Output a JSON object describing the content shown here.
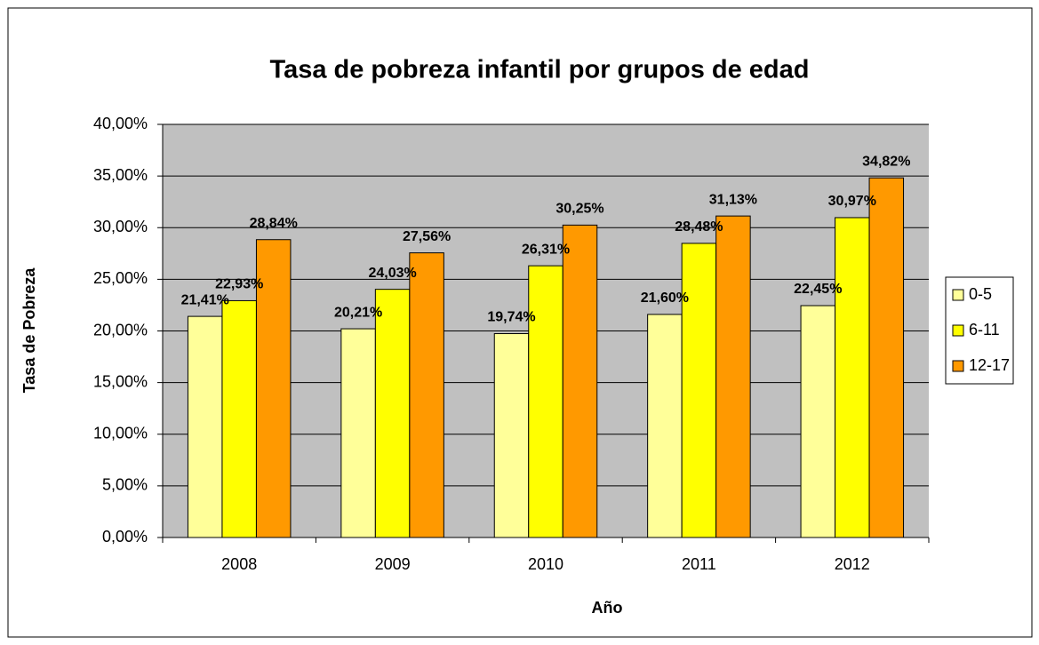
{
  "chart_data": {
    "type": "bar",
    "title": "Tasa de pobreza infantil por grupos de edad",
    "x_label": "Año",
    "y_label": "Tasa de Pobreza",
    "categories": [
      "2008",
      "2009",
      "2010",
      "2011",
      "2012"
    ],
    "series": [
      {
        "name": "0-5",
        "color": "#ffff99",
        "values": [
          21.41,
          20.21,
          19.74,
          21.6,
          22.45
        ],
        "value_labels": [
          "21,41%",
          "20,21%",
          "19,74%",
          "21,60%",
          "22,45%"
        ]
      },
      {
        "name": "6-11",
        "color": "#ffff00",
        "values": [
          22.93,
          24.03,
          26.31,
          28.48,
          30.97
        ],
        "value_labels": [
          "22,93%",
          "24,03%",
          "26,31%",
          "28,48%",
          "30,97%"
        ]
      },
      {
        "name": "12-17",
        "color": "#ff9900",
        "values": [
          28.84,
          27.56,
          30.25,
          31.13,
          34.82
        ],
        "value_labels": [
          "28,84%",
          "27,56%",
          "30,25%",
          "31,13%",
          "34,82%"
        ]
      }
    ],
    "ylim": [
      0,
      40
    ],
    "yticks": [
      {
        "value": 0,
        "label": "0,00%"
      },
      {
        "value": 5,
        "label": "5,00%"
      },
      {
        "value": 10,
        "label": "10,00%"
      },
      {
        "value": 15,
        "label": "15,00%"
      },
      {
        "value": 20,
        "label": "20,00%"
      },
      {
        "value": 25,
        "label": "25,00%"
      },
      {
        "value": 30,
        "label": "30,00%"
      },
      {
        "value": 35,
        "label": "35,00%"
      },
      {
        "value": 40,
        "label": "40,00%"
      }
    ],
    "grid": true,
    "legend": "right"
  }
}
